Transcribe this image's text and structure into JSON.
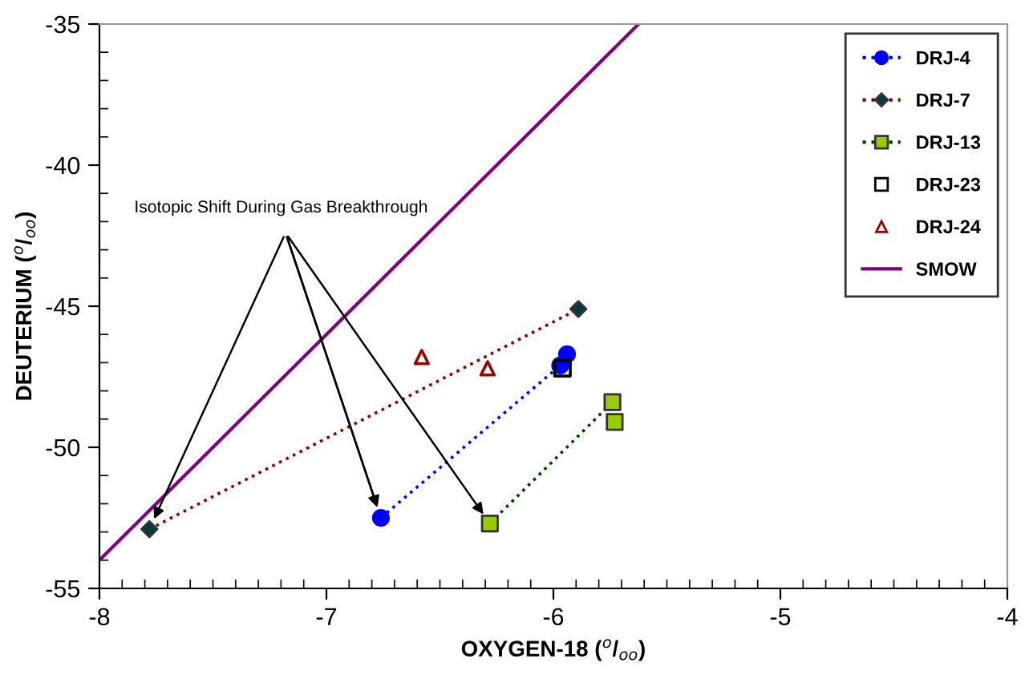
{
  "chart_data": {
    "type": "scatter",
    "xlabel": "OXYGEN-18 ($^{o}$/$_{oo}$)",
    "ylabel": "DEUTERIUM ($^{o}$/$_{oo}$)",
    "xlim": [
      -8,
      -4
    ],
    "xticks": [
      -8,
      -7,
      -6,
      -5,
      -4
    ],
    "ylim": [
      -55,
      -35
    ],
    "yticks": [
      -55,
      -50,
      -45,
      -40,
      -35
    ],
    "grid": false,
    "legend": "top right",
    "series": [
      {
        "name": "DRJ-4",
        "type": "line",
        "color": "#0000ff",
        "colors": [
          "#0000ff",
          "#0000ff",
          "#0000ff"
        ],
        "marker": "circle",
        "line_style": "dotted",
        "x": [
          -6.76,
          -5.97,
          -5.94
        ],
        "values": [
          -52.5,
          -47.1,
          -46.7
        ]
      },
      {
        "name": "DRJ-7",
        "type": "line",
        "color": "#8b0000",
        "colors": [
          "#003c3c",
          "#003c3c"
        ],
        "marker": "diamond",
        "line_style": "dotted",
        "x": [
          -7.78,
          -5.89
        ],
        "values": [
          -52.9,
          -45.1
        ]
      },
      {
        "name": "DRJ-13",
        "type": "line",
        "color": "#004000",
        "colors": [
          "#99cc00",
          "#99cc00",
          "#99cc00"
        ],
        "marker": "square",
        "line_style": "dotted",
        "x": [
          -6.28,
          -5.74,
          -5.73
        ],
        "values": [
          -52.7,
          -48.4,
          -49.1
        ]
      },
      {
        "name": "DRJ-23",
        "color": "#000000",
        "marker": "square",
        "x": [
          -5.96
        ],
        "values": [
          -47.2
        ]
      },
      {
        "name": "DRJ-24",
        "color": "#990000",
        "marker": "triangle",
        "x": [
          -6.58,
          -6.29
        ],
        "values": [
          -46.8,
          -47.2
        ]
      },
      {
        "name": "SMOW",
        "type": "line",
        "color": "#800080",
        "marker": "none",
        "line_style": "solid",
        "x": [
          -8,
          -5.625
        ],
        "values": [
          -54,
          -35
        ]
      }
    ],
    "annotations": [
      {
        "text": "Isotopic Shift During Gas Breakthrough",
        "x": -6.76,
        "y": -52.5
      }
    ]
  }
}
